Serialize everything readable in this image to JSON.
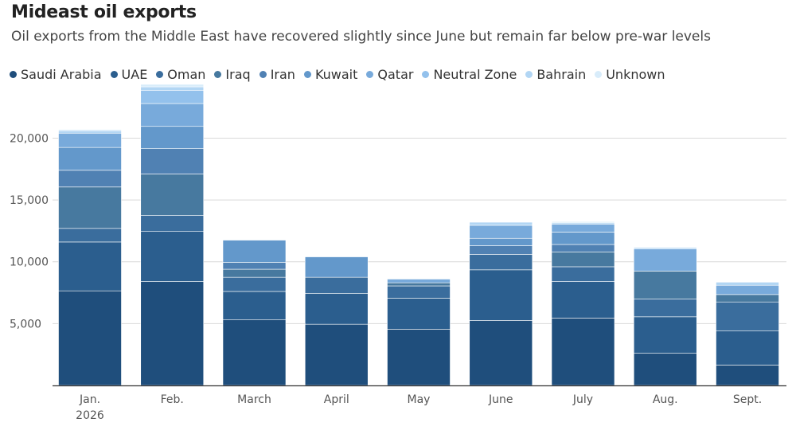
{
  "title": "Mideast oil exports",
  "subtitle": "Oil exports from the Middle East have recovered slightly since June but remain far below pre-war levels",
  "chart_data": {
    "type": "bar",
    "stacked": true,
    "categories": [
      "Jan.",
      "Feb.",
      "March",
      "April",
      "May",
      "June",
      "July",
      "Aug.",
      "Sept."
    ],
    "category_sublabels": [
      "2026",
      "",
      "",
      "",
      "",
      "",
      "",
      "",
      ""
    ],
    "ylim": [
      0,
      22800
    ],
    "yticks": [
      5000,
      10000,
      15000,
      20000
    ],
    "ytick_labels": [
      "5,000",
      "10,000",
      "15,000",
      "20,000"
    ],
    "grid": true,
    "legend_position": "top-left",
    "series": [
      {
        "name": "Saudi Arabia",
        "color": "#1f4e7c",
        "values": [
          7650,
          8400,
          5300,
          4950,
          4550,
          5250,
          5450,
          2600,
          1650
        ]
      },
      {
        "name": "UAE",
        "color": "#2b5e8e",
        "values": [
          3950,
          4050,
          2300,
          2500,
          2500,
          4100,
          2950,
          2950,
          2750
        ]
      },
      {
        "name": "Oman",
        "color": "#3a6d9d",
        "values": [
          1100,
          1300,
          1150,
          1300,
          1000,
          1250,
          1200,
          1450,
          2350
        ]
      },
      {
        "name": "Iraq",
        "color": "#47799f",
        "values": [
          3350,
          3350,
          650,
          0,
          250,
          0,
          1200,
          2250,
          600
        ]
      },
      {
        "name": "Iran",
        "color": "#5081b3",
        "values": [
          1350,
          2050,
          550,
          0,
          0,
          700,
          600,
          0,
          0
        ]
      },
      {
        "name": "Kuwait",
        "color": "#6398cb",
        "values": [
          1850,
          1800,
          1800,
          1650,
          0,
          600,
          1000,
          0,
          0
        ]
      },
      {
        "name": "Qatar",
        "color": "#78aadb",
        "values": [
          1150,
          1850,
          0,
          0,
          300,
          1050,
          650,
          1800,
          750
        ]
      },
      {
        "name": "Neutral Zone",
        "color": "#93c1ec",
        "values": [
          0,
          1050,
          0,
          0,
          0,
          0,
          0,
          0,
          0
        ]
      },
      {
        "name": "Bahrain",
        "color": "#b2d6f4",
        "values": [
          200,
          300,
          0,
          50,
          0,
          250,
          100,
          100,
          250
        ]
      },
      {
        "name": "Unknown",
        "color": "#d8ecfa",
        "values": [
          100,
          200,
          0,
          0,
          0,
          0,
          100,
          0,
          0
        ]
      }
    ]
  }
}
